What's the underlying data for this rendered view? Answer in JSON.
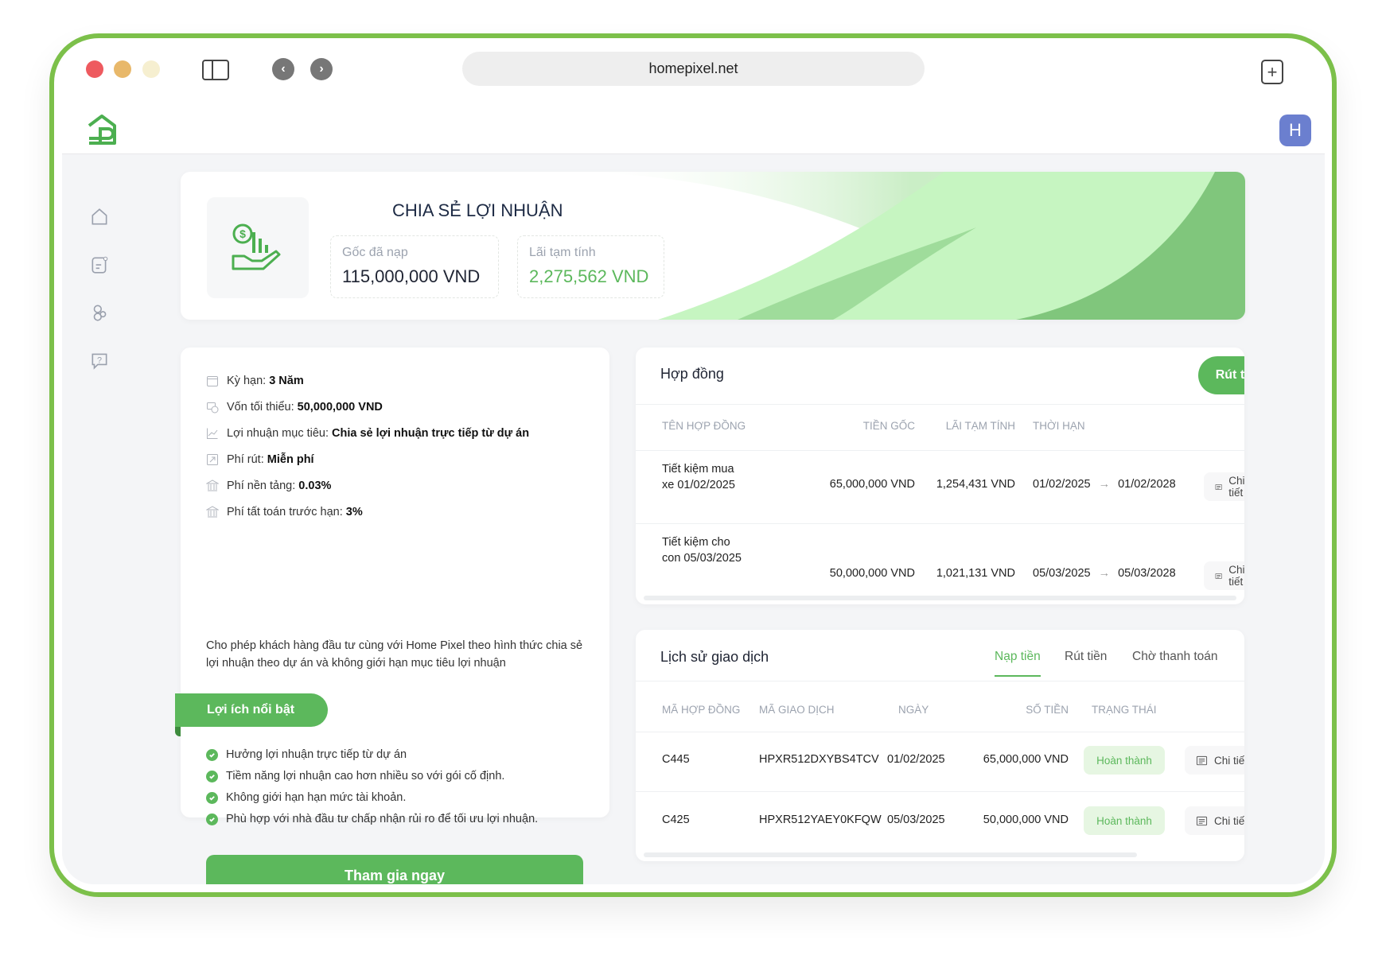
{
  "browser": {
    "url": "homepixel.net"
  },
  "colors": {
    "brand": "#5cb85c",
    "frame": "#7cc04a",
    "avatar": "#6b7fcf"
  },
  "header": {
    "avatar_initial": "H"
  },
  "sidebar": {
    "icons": [
      "home-icon",
      "document-icon",
      "users-icon",
      "help-chat-icon"
    ]
  },
  "banner": {
    "title": "CHIA SẺ LỢI NHUẬN",
    "stats": [
      {
        "label": "Gốc đã nạp",
        "value": "115,000,000 VND"
      },
      {
        "label": "Lãi tạm tính",
        "value": "2,275,562 VND"
      }
    ]
  },
  "details": {
    "items": [
      {
        "label": "Kỳ hạn: ",
        "value": "3 Năm",
        "icon": "calendar-icon"
      },
      {
        "label": "Vốn tối thiểu: ",
        "value": "50,000,000 VND",
        "icon": "money-icon"
      },
      {
        "label": "Lợi nhuận mục tiêu: ",
        "value": "Chia sẻ lợi nhuận trực tiếp từ dự án",
        "icon": "chart-line-icon"
      },
      {
        "label": "Phí rút: ",
        "value": "Miễn phí",
        "icon": "external-arrow-icon"
      },
      {
        "label": "Phí nền tảng: ",
        "value": "0.03%",
        "icon": "bank-icon"
      },
      {
        "label": "Phí tất toán trước hạn: ",
        "value": "3%",
        "icon": "bank-icon"
      }
    ],
    "description": "Cho phép khách hàng đầu tư cùng với Home Pixel theo hình thức chia sẻ lợi nhuận theo dự án và không giới hạn mục tiêu lợi nhuận",
    "benefits_title": "Lợi ích nổi bật",
    "benefits": [
      "Hưởng lợi nhuận trực tiếp từ dự án",
      "Tiềm năng lợi nhuận cao hơn nhiều so với gói cố định.",
      "Không giới hạn hạn mức tài khoản.",
      "Phù hợp với nhà đầu tư chấp nhận rủi ro để tối ưu lợi nhuận."
    ],
    "join_label": "Tham gia ngay"
  },
  "contracts": {
    "title": "Hợp đồng",
    "withdraw_label": "Rút tiền",
    "columns": [
      "TÊN HỢP ĐỒNG",
      "TIỀN GỐC",
      "LÃI TẠM TÍNH",
      "THỜI HẠN"
    ],
    "rows": [
      {
        "name": "Tiết kiệm mua xe 01/02/2025",
        "principal": "65,000,000 VND",
        "interest": "1,254,431 VND",
        "start": "01/02/2025",
        "end": "01/02/2028",
        "action": "Chi tiết"
      },
      {
        "name": "Tiết kiệm cho con 05/03/2025",
        "principal": "50,000,000 VND",
        "interest": "1,021,131 VND",
        "start": "05/03/2025",
        "end": "05/03/2028",
        "action": "Chi tiết"
      }
    ]
  },
  "history": {
    "title": "Lịch sử giao dịch",
    "tabs": [
      {
        "label": "Nạp tiền",
        "active": true
      },
      {
        "label": "Rút tiền"
      },
      {
        "label": "Chờ thanh toán"
      }
    ],
    "columns": [
      "MÃ HỢP ĐỒNG",
      "MÃ GIAO DỊCH",
      "NGÀY",
      "SỐ TIỀN",
      "TRẠNG THÁI"
    ],
    "rows": [
      {
        "contract": "C445",
        "txn": "HPXR512DXYBS4TCV",
        "date": "01/02/2025",
        "amount": "65,000,000 VND",
        "status": "Hoàn thành",
        "action": "Chi tiết"
      },
      {
        "contract": "C425",
        "txn": "HPXR512YAEY0KFQW",
        "date": "05/03/2025",
        "amount": "50,000,000 VND",
        "status": "Hoàn thành",
        "action": "Chi tiết"
      }
    ]
  }
}
